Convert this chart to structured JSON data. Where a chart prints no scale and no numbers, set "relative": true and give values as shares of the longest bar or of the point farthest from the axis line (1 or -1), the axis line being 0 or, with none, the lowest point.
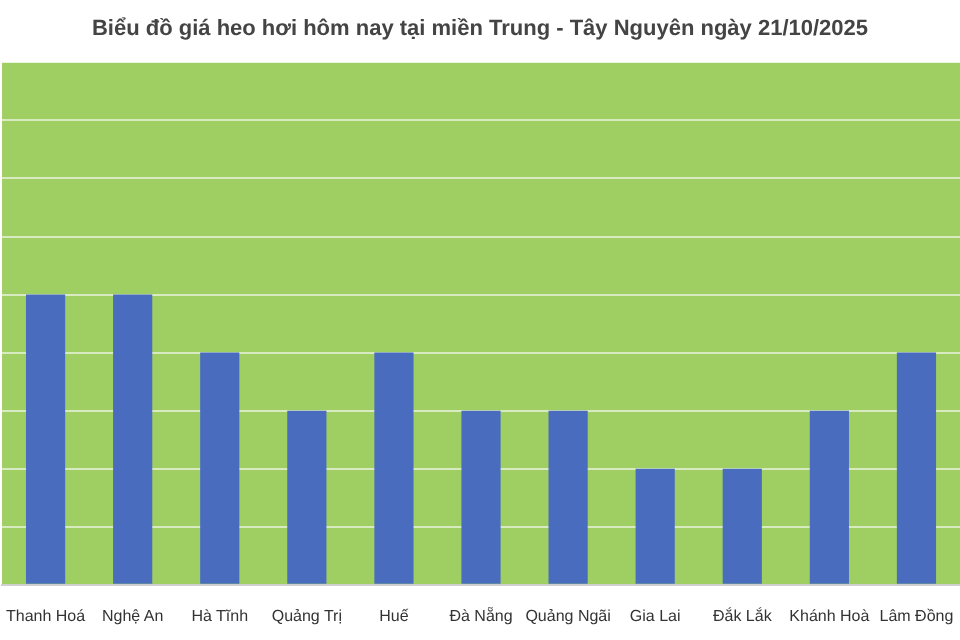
{
  "chart_data": {
    "type": "bar",
    "title": "Biểu đồ giá heo hơi hôm nay tại miền Trung - Tây Nguyên ngày 21/10/2025",
    "categories": [
      "Thanh Hoá",
      "Nghệ An",
      "Hà Tĩnh",
      "Quảng Trị",
      "Huế",
      "Đà Nẵng",
      "Quảng Ngãi",
      "Gia Lai",
      "Đắk Lắk",
      "Khánh Hoà",
      "Lâm Đồng"
    ],
    "values": [
      1,
      1,
      0.8,
      0.6,
      0.8,
      0.6,
      0.6,
      0.4,
      0.4,
      0.6,
      0.8
    ],
    "color": "#4a6cbf",
    "relative": true,
    "grid": "y"
  }
}
